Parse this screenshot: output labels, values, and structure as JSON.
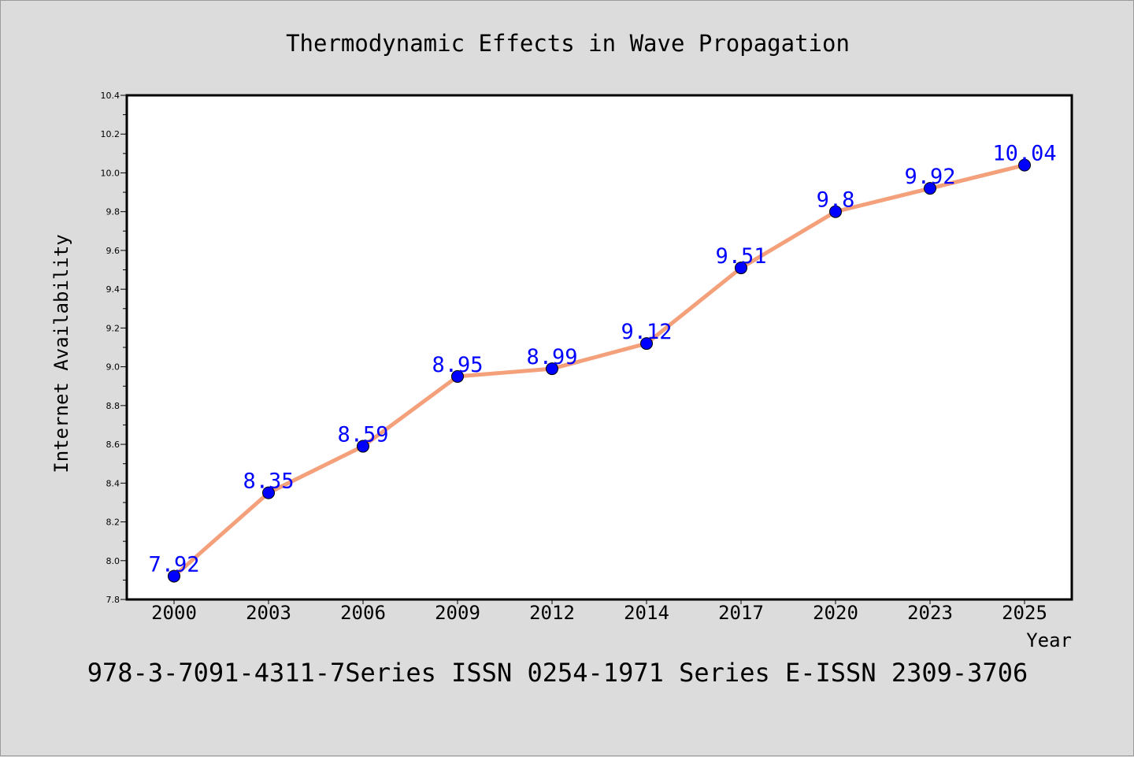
{
  "chart_data": {
    "type": "line",
    "title": "Thermodynamic Effects in Wave Propagation",
    "xlabel": "Year",
    "ylabel": "Internet Availability",
    "categories": [
      "2000",
      "2003",
      "2006",
      "2009",
      "2012",
      "2014",
      "2017",
      "2020",
      "2023",
      "2025"
    ],
    "series": [
      {
        "values": [
          7.92,
          8.35,
          8.59,
          8.95,
          8.99,
          9.12,
          9.51,
          9.8,
          9.92,
          10.04
        ],
        "data_labels": [
          "7.92",
          "8.35",
          "8.59",
          "8.95",
          "8.99",
          "9.12",
          "9.51",
          "9.8",
          "9.92",
          "10.04"
        ],
        "line_color": "#f4a07a",
        "marker_color": "#0000ff"
      }
    ],
    "ylim": [
      7.8,
      10.4
    ],
    "yticks": [
      "7.8",
      "8.0",
      "8.2",
      "8.4",
      "8.6",
      "8.8",
      "9.0",
      "9.2",
      "9.4",
      "9.6",
      "9.8",
      "10.0",
      "10.2",
      "10.4"
    ],
    "grid": false,
    "legend": "none"
  },
  "footer": "978-3-7091-4311-7Series ISSN 0254-1971 Series E-ISSN 2309-3706",
  "colors": {
    "background": "#dcdcdc",
    "plot_background": "#ffffff",
    "data_label": "#0000ff"
  }
}
